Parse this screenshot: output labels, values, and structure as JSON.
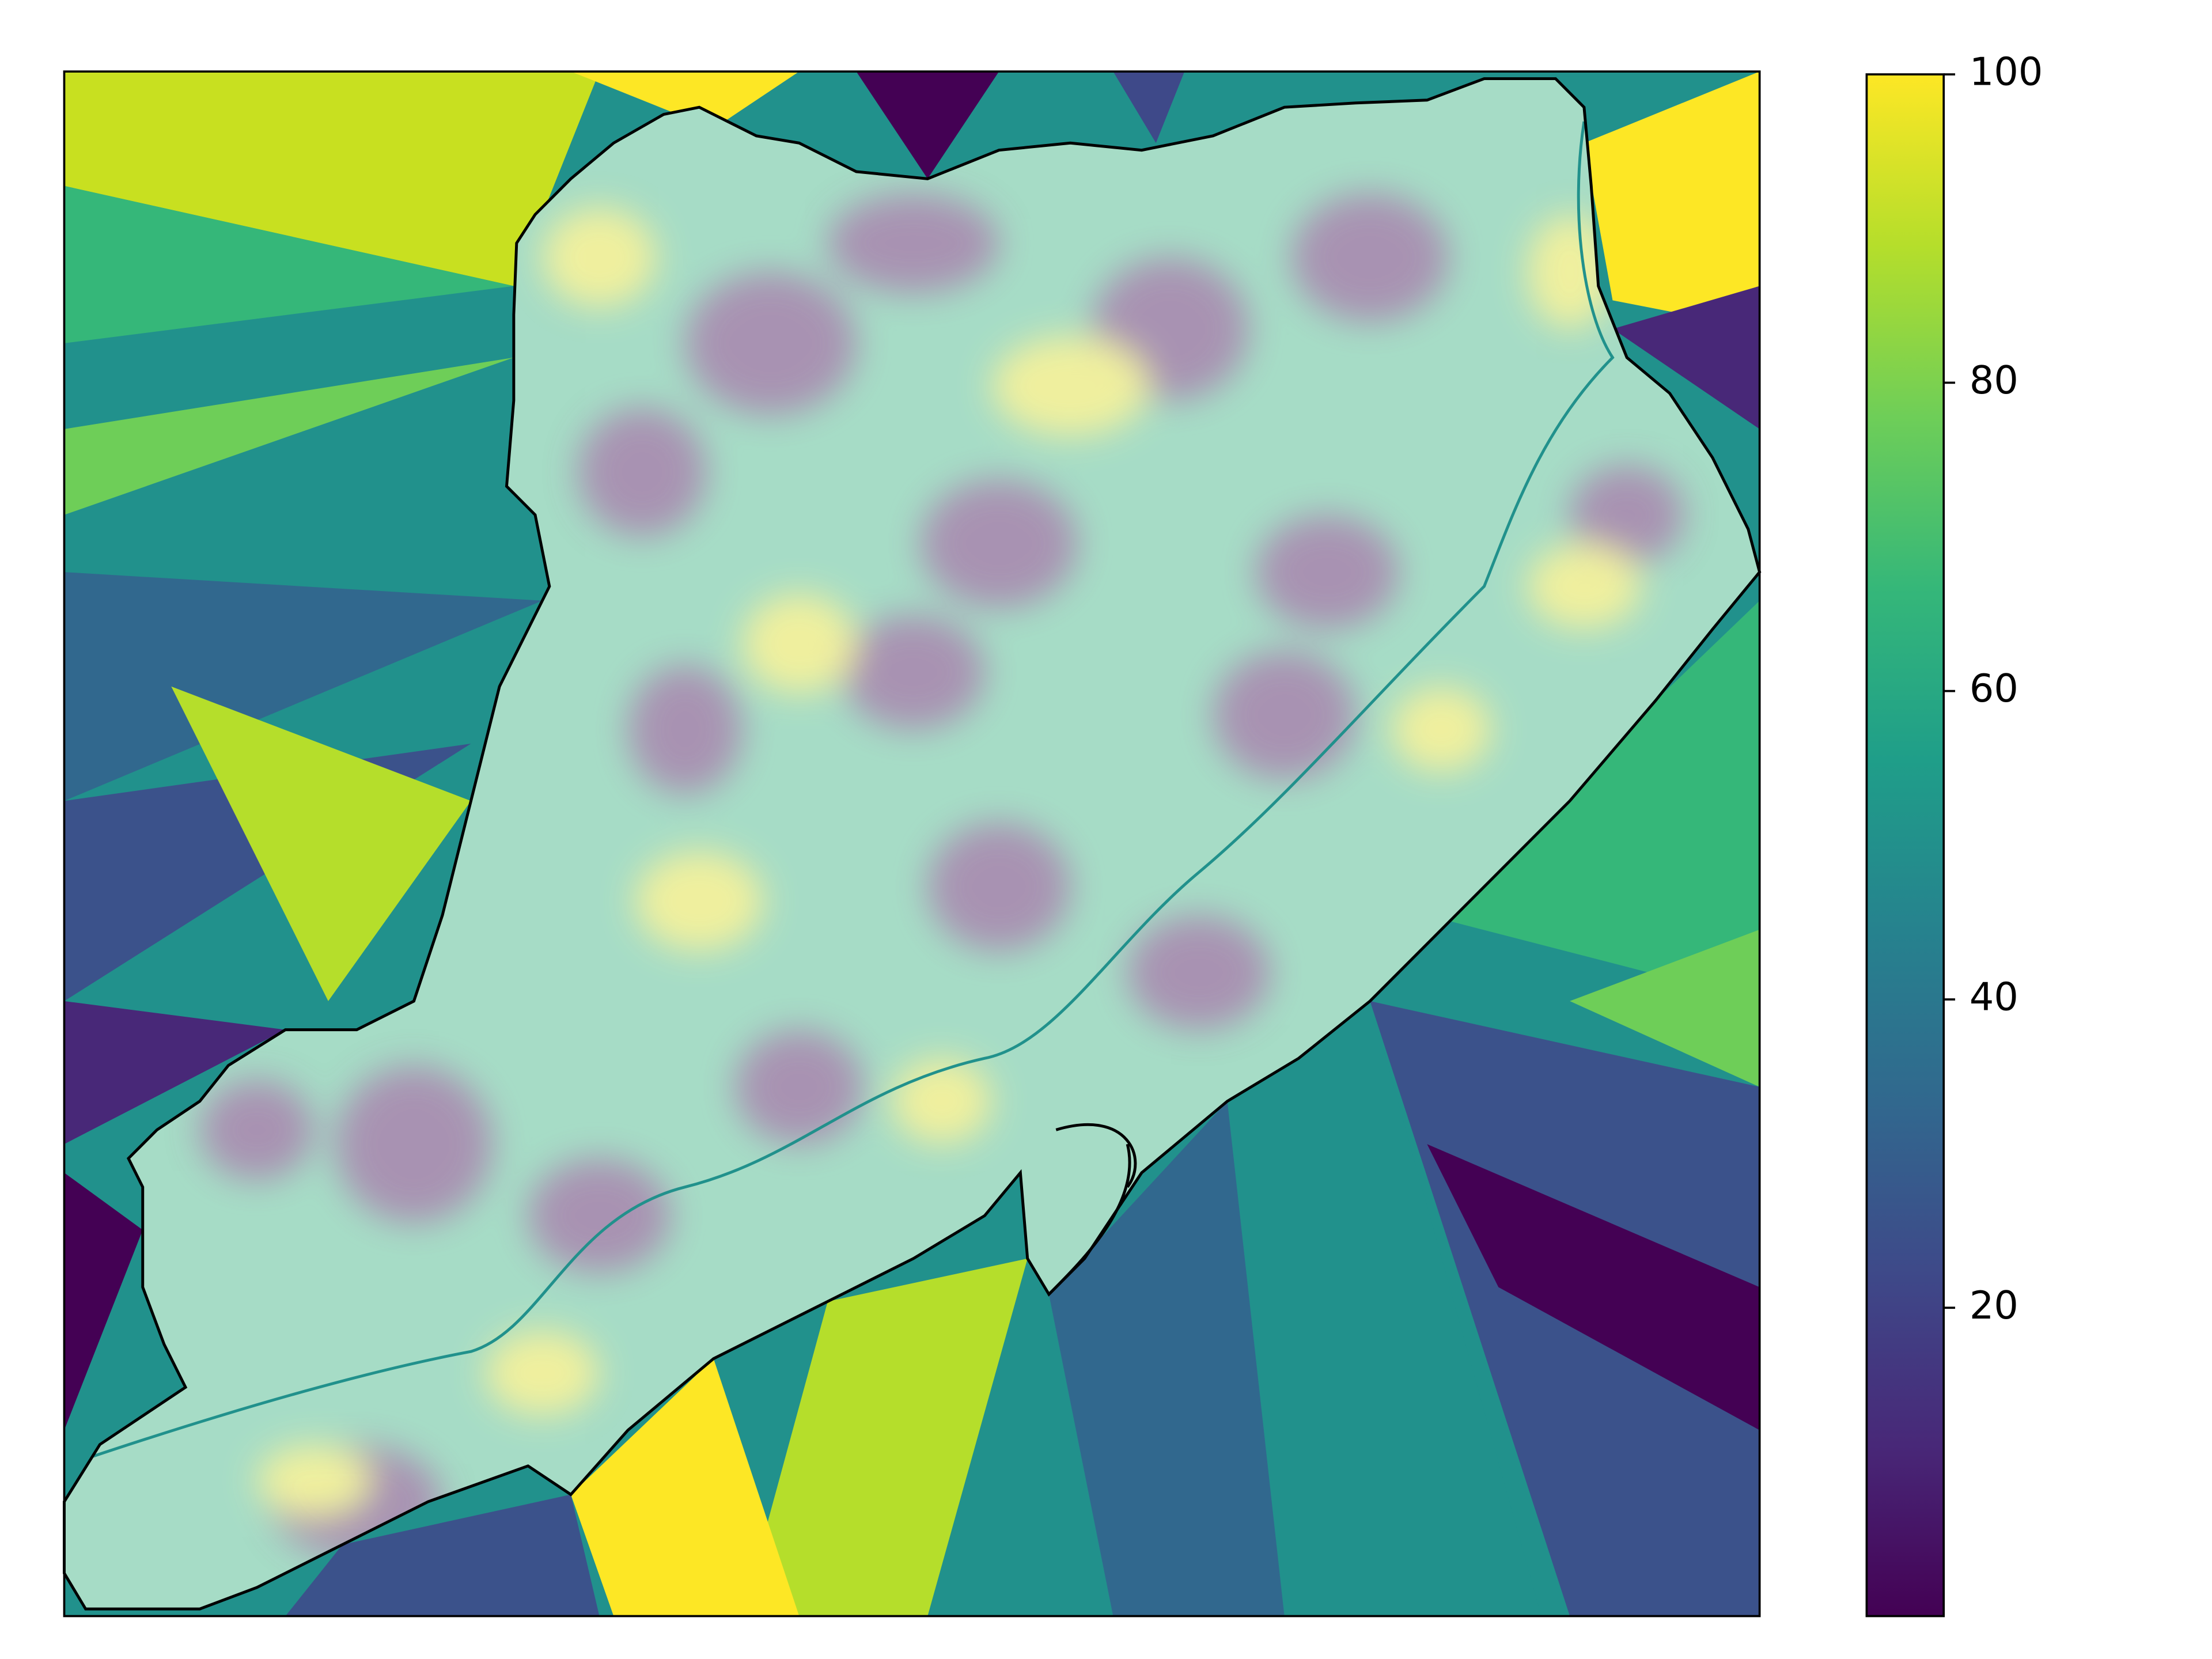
{
  "chart_data": {
    "type": "heatmap",
    "colormap": "viridis",
    "clim": [
      0,
      100
    ],
    "cticks": [
      20,
      40,
      60,
      80,
      100
    ]
  }
}
